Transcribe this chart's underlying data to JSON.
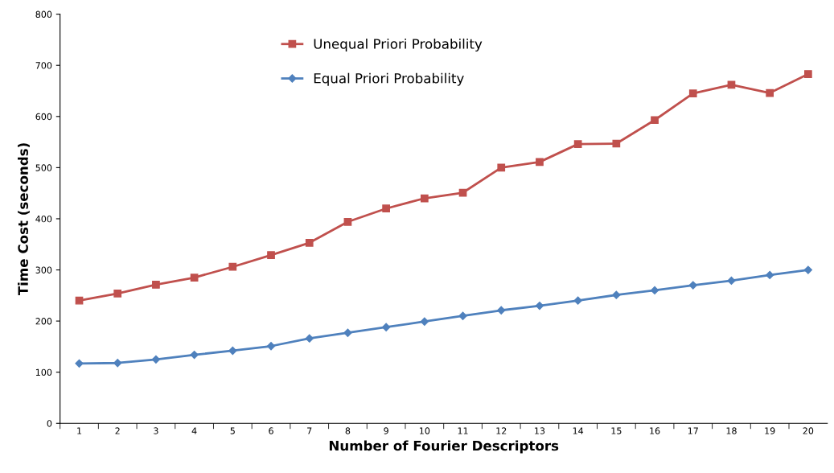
{
  "chart_data": {
    "type": "line",
    "xlabel": "Number of Fourier Descriptors",
    "ylabel": "Time Cost (seconds)",
    "categories": [
      "1",
      "2",
      "3",
      "4",
      "5",
      "6",
      "7",
      "8",
      "9",
      "10",
      "11",
      "12",
      "13",
      "14",
      "15",
      "16",
      "17",
      "18",
      "19",
      "20"
    ],
    "series": [
      {
        "name": "Unequal Priori Probability",
        "color": "#c0504d",
        "marker": "square",
        "values": [
          240,
          254,
          271,
          285,
          306,
          329,
          353,
          394,
          420,
          440,
          451,
          500,
          511,
          546,
          547,
          593,
          645,
          662,
          646,
          683
        ]
      },
      {
        "name": "Equal Priori Probability",
        "color": "#4f81bd",
        "marker": "diamond",
        "values": [
          117,
          118,
          125,
          134,
          142,
          151,
          166,
          177,
          188,
          199,
          210,
          221,
          230,
          240,
          251,
          260,
          270,
          279,
          290,
          300
        ]
      }
    ],
    "ylim": [
      0,
      800
    ],
    "yticks": [
      0,
      100,
      200,
      300,
      400,
      500,
      600,
      700,
      800
    ],
    "grid": false,
    "legend": "top",
    "line_style": "solid"
  }
}
